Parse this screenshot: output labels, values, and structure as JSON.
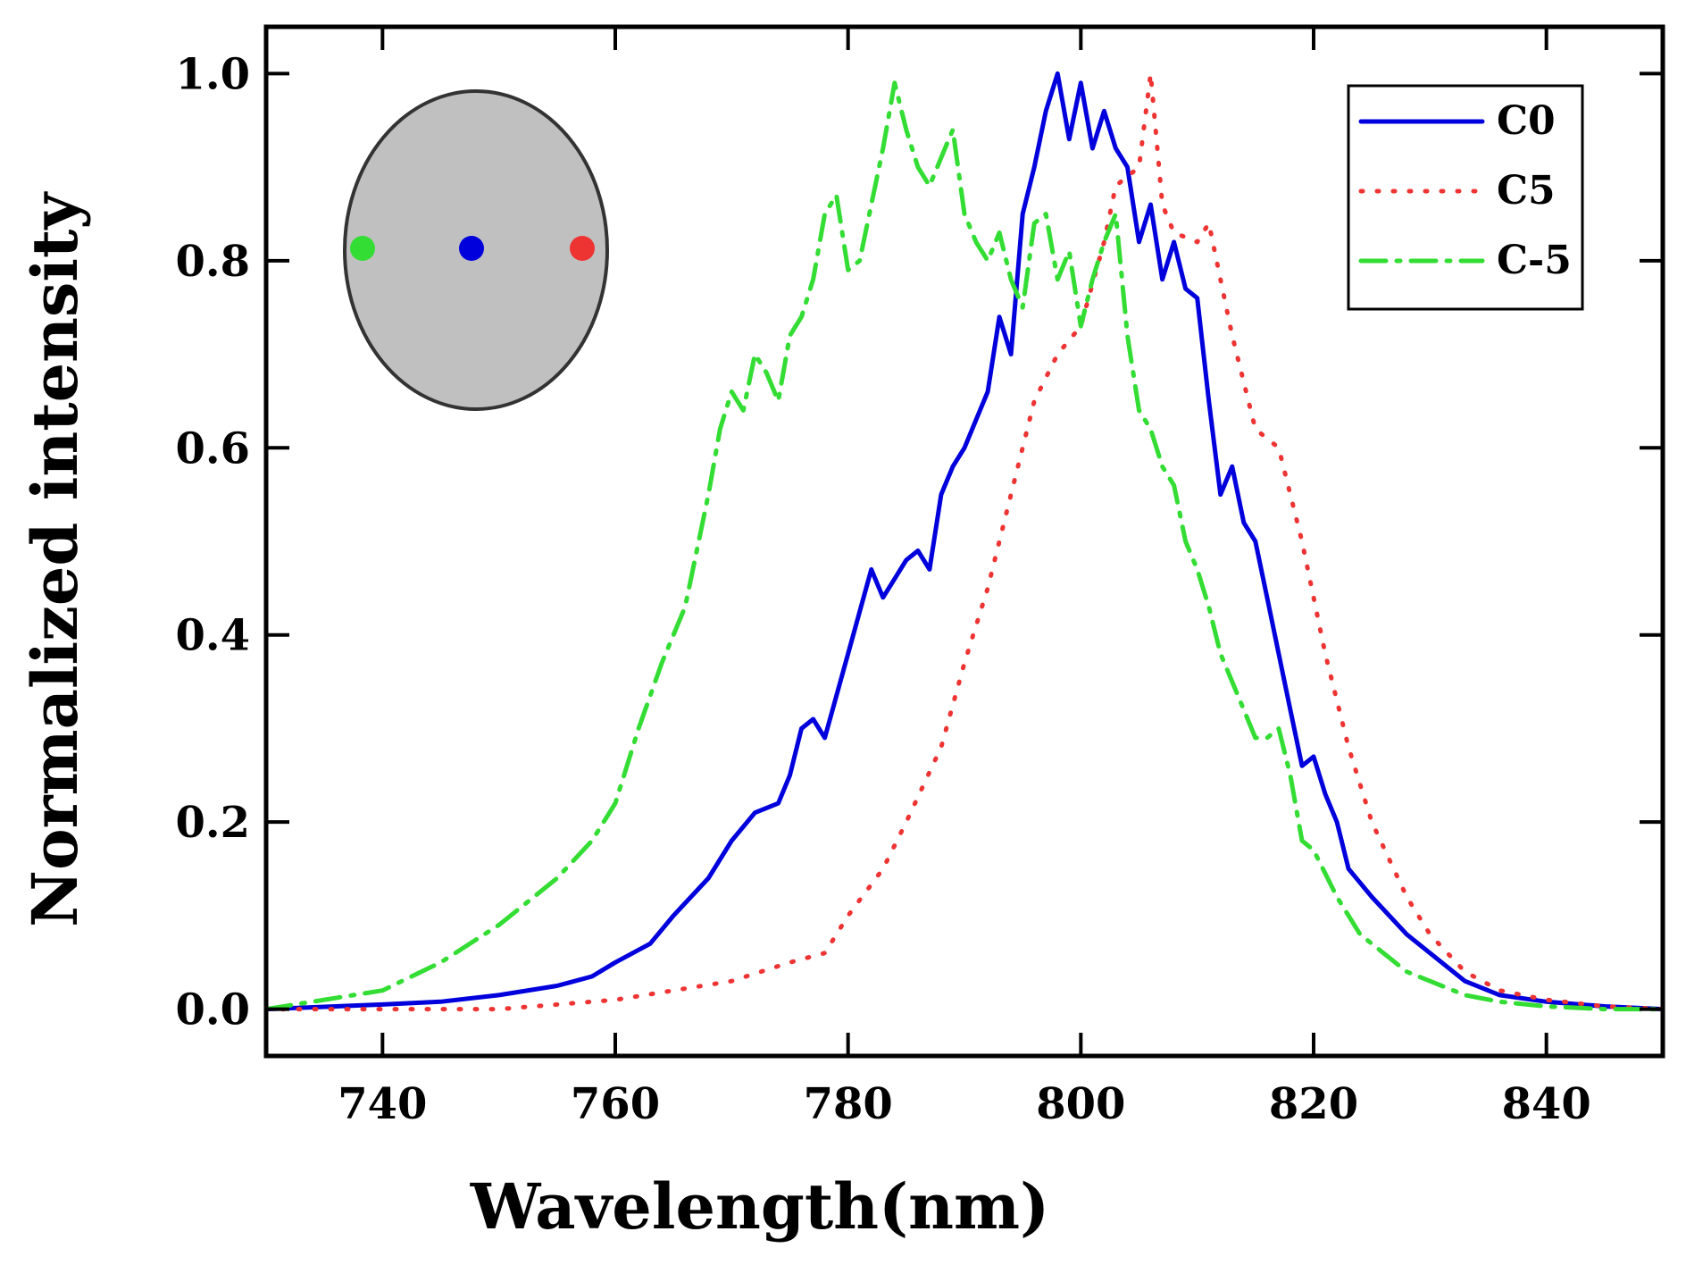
{
  "chart_data": {
    "type": "line",
    "xlabel": "Wavelength(nm)",
    "ylabel": "Normalized intensity",
    "xlim": [
      730,
      850
    ],
    "ylim": [
      -0.05,
      1.05
    ],
    "xticks": [
      740,
      760,
      780,
      800,
      820,
      840
    ],
    "xtick_labels": [
      "740",
      "760",
      "780",
      "800",
      "820",
      "840"
    ],
    "yticks": [
      0.0,
      0.2,
      0.4,
      0.6,
      0.8,
      1.0
    ],
    "ytick_labels": [
      "0.0",
      "0.2",
      "0.4",
      "0.6",
      "0.8",
      "1.0"
    ],
    "grid": false,
    "legend_position": "top-right",
    "series": [
      {
        "name": "C0",
        "color": "#0000dd",
        "style": "solid",
        "x": [
          730,
          740,
          745,
          750,
          755,
          758,
          760,
          763,
          765,
          768,
          770,
          772,
          774,
          775,
          776,
          777,
          778,
          780,
          782,
          783,
          784,
          785,
          786,
          787,
          788,
          789,
          790,
          791,
          792,
          793,
          794,
          795,
          796,
          797,
          798,
          799,
          800,
          801,
          802,
          803,
          804,
          805,
          806,
          807,
          808,
          809,
          810,
          811,
          812,
          813,
          814,
          815,
          816,
          817,
          818,
          819,
          820,
          821,
          822,
          823,
          825,
          828,
          830,
          833,
          836,
          840,
          845,
          850
        ],
        "y": [
          0.0,
          0.005,
          0.008,
          0.015,
          0.025,
          0.035,
          0.05,
          0.07,
          0.1,
          0.14,
          0.18,
          0.21,
          0.22,
          0.25,
          0.3,
          0.31,
          0.29,
          0.38,
          0.47,
          0.44,
          0.46,
          0.48,
          0.49,
          0.47,
          0.55,
          0.58,
          0.6,
          0.63,
          0.66,
          0.74,
          0.7,
          0.85,
          0.9,
          0.96,
          1.0,
          0.93,
          0.99,
          0.92,
          0.96,
          0.92,
          0.9,
          0.82,
          0.86,
          0.78,
          0.82,
          0.77,
          0.76,
          0.65,
          0.55,
          0.58,
          0.52,
          0.5,
          0.44,
          0.38,
          0.32,
          0.26,
          0.27,
          0.23,
          0.2,
          0.15,
          0.12,
          0.08,
          0.06,
          0.03,
          0.015,
          0.008,
          0.003,
          0.0
        ]
      },
      {
        "name": "C5",
        "color": "#ee3333",
        "style": "dotted",
        "x": [
          730,
          750,
          760,
          770,
          775,
          778,
          780,
          783,
          785,
          788,
          790,
          792,
          794,
          796,
          798,
          800,
          802,
          803,
          804,
          805,
          806,
          807,
          808,
          810,
          811,
          812,
          813,
          815,
          817,
          819,
          821,
          823,
          825,
          828,
          830,
          833,
          836,
          840,
          845,
          850
        ],
        "y": [
          0.0,
          0.0,
          0.01,
          0.03,
          0.05,
          0.06,
          0.1,
          0.15,
          0.2,
          0.28,
          0.37,
          0.45,
          0.55,
          0.65,
          0.7,
          0.73,
          0.82,
          0.88,
          0.89,
          0.9,
          1.0,
          0.86,
          0.83,
          0.82,
          0.84,
          0.78,
          0.72,
          0.62,
          0.6,
          0.5,
          0.38,
          0.28,
          0.2,
          0.12,
          0.08,
          0.04,
          0.02,
          0.01,
          0.003,
          0.0
        ]
      },
      {
        "name": "C-5",
        "color": "#33dd33",
        "style": "dashdot",
        "x": [
          730,
          740,
          745,
          750,
          753,
          755,
          758,
          760,
          762,
          764,
          766,
          768,
          769,
          770,
          771,
          772,
          773,
          774,
          775,
          776,
          777,
          778,
          779,
          780,
          781,
          782,
          783,
          784,
          785,
          786,
          787,
          788,
          789,
          790,
          791,
          792,
          793,
          794,
          795,
          796,
          797,
          798,
          799,
          800,
          801,
          802,
          803,
          804,
          805,
          806,
          807,
          808,
          809,
          810,
          811,
          812,
          813,
          814,
          815,
          816,
          817,
          818,
          819,
          820,
          822,
          824,
          826,
          828,
          830,
          833,
          836,
          840,
          845,
          850
        ],
        "y": [
          0.0,
          0.02,
          0.05,
          0.09,
          0.12,
          0.14,
          0.18,
          0.22,
          0.3,
          0.37,
          0.43,
          0.55,
          0.62,
          0.66,
          0.64,
          0.7,
          0.68,
          0.65,
          0.72,
          0.74,
          0.78,
          0.85,
          0.87,
          0.79,
          0.8,
          0.86,
          0.92,
          0.99,
          0.94,
          0.9,
          0.88,
          0.91,
          0.94,
          0.85,
          0.82,
          0.8,
          0.83,
          0.78,
          0.75,
          0.84,
          0.85,
          0.78,
          0.81,
          0.73,
          0.78,
          0.82,
          0.85,
          0.72,
          0.64,
          0.62,
          0.58,
          0.56,
          0.5,
          0.47,
          0.43,
          0.38,
          0.35,
          0.32,
          0.29,
          0.29,
          0.3,
          0.25,
          0.18,
          0.17,
          0.12,
          0.08,
          0.06,
          0.04,
          0.03,
          0.015,
          0.008,
          0.003,
          0.0,
          0.0
        ]
      }
    ]
  },
  "inset": {
    "description_colors": {
      "fill": "#c0c0c0",
      "outline": "#333333"
    },
    "dots": [
      {
        "name": "C-5",
        "color": "#33dd33"
      },
      {
        "name": "C0",
        "color": "#0000dd"
      },
      {
        "name": "C5",
        "color": "#ee3333"
      }
    ]
  }
}
